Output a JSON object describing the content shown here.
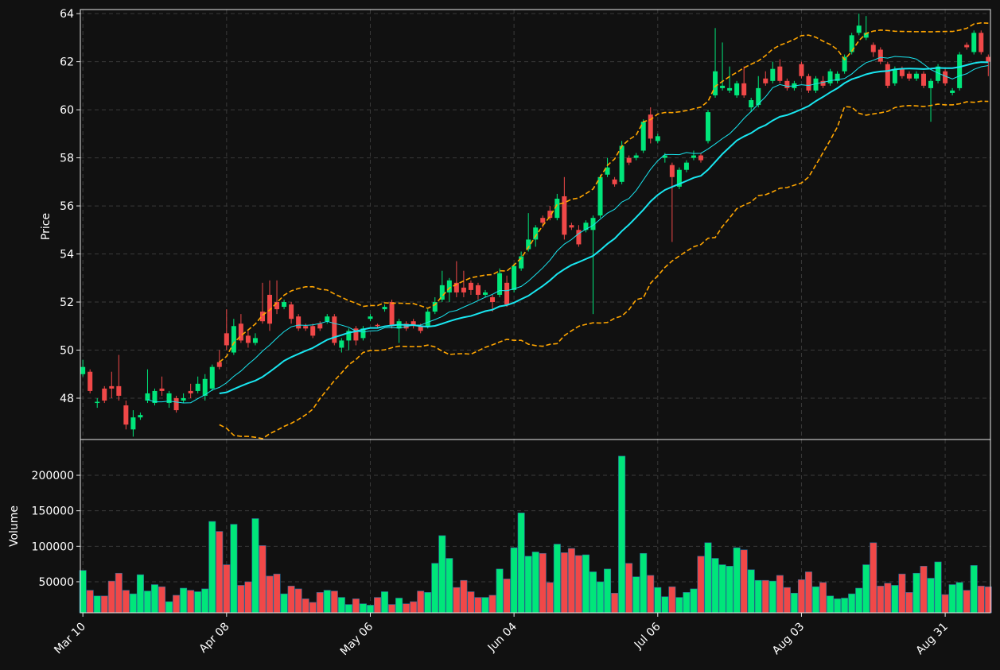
{
  "chart_data": {
    "type": "candlestick",
    "ylabel": "Price",
    "volume_label": "Volume",
    "ylim": [
      46.28,
      64.17
    ],
    "yticks": [
      48,
      50,
      52,
      54,
      56,
      58,
      60,
      62,
      64
    ],
    "volume_ylim": [
      6300,
      250400
    ],
    "volume_yticks": [
      50000,
      100000,
      150000,
      200000
    ],
    "xlim": [
      -0.35,
      126.3
    ],
    "grid": true,
    "up_color": "#00e67a",
    "down_color": "#f04848",
    "ma_color": "#19e6f0",
    "band_color": "#ffa500",
    "categories": [
      "Mar 10",
      null,
      null,
      null,
      null,
      null,
      null,
      null,
      null,
      null,
      null,
      null,
      null,
      null,
      null,
      null,
      null,
      null,
      null,
      null,
      "Apr 08",
      null,
      null,
      null,
      null,
      null,
      null,
      null,
      null,
      null,
      null,
      null,
      null,
      null,
      null,
      null,
      null,
      null,
      null,
      null,
      "May 06",
      null,
      null,
      null,
      null,
      null,
      null,
      null,
      null,
      null,
      null,
      null,
      null,
      null,
      null,
      null,
      null,
      null,
      null,
      null,
      "Jun 04",
      null,
      null,
      null,
      null,
      null,
      null,
      null,
      null,
      null,
      null,
      null,
      null,
      null,
      null,
      null,
      null,
      null,
      null,
      null,
      "Jul 06",
      null,
      null,
      null,
      null,
      null,
      null,
      null,
      null,
      null,
      null,
      null,
      null,
      null,
      null,
      null,
      null,
      null,
      null,
      null,
      "Aug 03",
      null,
      null,
      null,
      null,
      null,
      null,
      null,
      null,
      null,
      null,
      null,
      null,
      null,
      null,
      null,
      null,
      null,
      null,
      null,
      "Aug 31",
      null,
      null,
      null,
      null,
      null,
      null
    ],
    "open": [
      49.0,
      49.1,
      47.8,
      48.4,
      48.5,
      48.5,
      47.7,
      46.7,
      47.2,
      47.9,
      47.8,
      48.4,
      47.8,
      48.0,
      47.9,
      48.3,
      48.3,
      48.1,
      48.4,
      49.5,
      50.7,
      49.9,
      51.1,
      50.6,
      50.3,
      51.6,
      52.3,
      52.0,
      51.8,
      51.9,
      51.4,
      51.0,
      51.0,
      51.1,
      51.2,
      51.4,
      50.1,
      50.4,
      50.9,
      50.5,
      51.3,
      51.05,
      51.7,
      52.0,
      50.9,
      51.1,
      51.2,
      51.0,
      51.0,
      51.6,
      52.1,
      52.4,
      52.8,
      52.6,
      52.8,
      52.7,
      52.3,
      52.2,
      52.3,
      52.8,
      52.5,
      53.4,
      54.2,
      54.6,
      55.5,
      55.8,
      55.5,
      56.4,
      55.2,
      55.0,
      55.0,
      55.0,
      55.6,
      57.3,
      57.1,
      57.0,
      58.0,
      58.0,
      58.3,
      59.8,
      58.7,
      58.0,
      57.7,
      56.8,
      57.5,
      58.0,
      58.1,
      58.7,
      60.6,
      60.9,
      60.8,
      60.6,
      61.1,
      60.1,
      60.2,
      61.3,
      61.2,
      61.8,
      61.2,
      60.9,
      61.9,
      61.4,
      60.8,
      61.2,
      61.1,
      61.2,
      61.6,
      62.4,
      63.2,
      63.0,
      62.7,
      62.5,
      61.9,
      61.1,
      61.7,
      61.5,
      61.3,
      61.5,
      60.9,
      61.2,
      61.6,
      60.7,
      60.9,
      62.7,
      62.4,
      63.2,
      62.2
    ],
    "high": [
      49.6,
      49.2,
      48.0,
      48.5,
      49.1,
      49.8,
      47.9,
      47.5,
      47.4,
      49.2,
      48.4,
      48.9,
      48.3,
      48.1,
      48.2,
      48.6,
      48.9,
      49.0,
      49.4,
      50.0,
      51.7,
      51.3,
      51.5,
      50.8,
      50.7,
      52.8,
      52.9,
      52.9,
      52.1,
      52.0,
      51.5,
      51.1,
      51.1,
      51.2,
      51.5,
      51.5,
      50.5,
      50.9,
      51.0,
      51.0,
      51.5,
      51.1,
      51.9,
      52.1,
      51.3,
      51.2,
      51.3,
      51.1,
      51.7,
      52.2,
      53.3,
      53.0,
      53.7,
      53.3,
      52.9,
      52.8,
      52.5,
      52.3,
      53.4,
      53.1,
      53.6,
      54.1,
      55.7,
      55.2,
      55.6,
      56.0,
      56.5,
      57.2,
      55.3,
      55.2,
      55.4,
      55.6,
      57.3,
      58.0,
      57.2,
      58.7,
      58.1,
      58.2,
      59.6,
      60.1,
      59.0,
      58.2,
      57.8,
      57.6,
      57.9,
      58.3,
      58.2,
      60.0,
      63.4,
      62.8,
      61.8,
      61.2,
      61.8,
      60.5,
      61.4,
      61.6,
      62.0,
      62.1,
      61.3,
      61.2,
      62.0,
      61.5,
      61.4,
      61.4,
      61.7,
      61.6,
      62.3,
      63.2,
      64.0,
      63.9,
      62.8,
      62.6,
      62.0,
      61.8,
      61.8,
      61.6,
      61.6,
      61.6,
      61.3,
      61.9,
      61.7,
      60.9,
      62.4,
      62.8,
      63.3,
      63.3,
      62.3
    ],
    "low": [
      48.9,
      48.2,
      47.6,
      47.8,
      48.0,
      47.9,
      46.7,
      46.4,
      47.1,
      47.8,
      47.7,
      48.1,
      47.6,
      47.4,
      47.8,
      48.0,
      48.2,
      47.9,
      48.3,
      49.2,
      50.0,
      49.8,
      50.3,
      50.1,
      50.2,
      51.1,
      50.8,
      51.5,
      51.7,
      51.1,
      50.8,
      50.8,
      50.5,
      50.8,
      51.1,
      50.2,
      49.9,
      50.0,
      50.2,
      50.4,
      51.2,
      50.9,
      51.6,
      50.9,
      50.3,
      50.8,
      50.9,
      50.7,
      50.9,
      51.5,
      52.0,
      52.0,
      52.2,
      52.2,
      52.3,
      52.1,
      52.2,
      51.6,
      52.2,
      51.8,
      52.4,
      53.3,
      54.1,
      54.3,
      55.1,
      55.4,
      55.4,
      54.6,
      55.0,
      54.3,
      54.9,
      51.5,
      55.5,
      57.2,
      56.8,
      56.9,
      57.7,
      57.9,
      58.2,
      58.6,
      58.6,
      57.8,
      54.5,
      56.7,
      57.4,
      57.9,
      57.8,
      58.6,
      60.5,
      60.8,
      60.7,
      60.5,
      60.5,
      59.9,
      60.1,
      61.0,
      61.1,
      61.1,
      60.8,
      60.8,
      61.3,
      60.7,
      60.7,
      60.9,
      61.0,
      61.1,
      61.5,
      62.3,
      63.1,
      62.9,
      62.2,
      61.9,
      60.9,
      61.0,
      61.3,
      61.2,
      61.2,
      60.9,
      59.5,
      61.1,
      61.0,
      60.6,
      60.8,
      62.5,
      62.3,
      62.3,
      61.4
    ],
    "close": [
      49.3,
      48.3,
      47.85,
      47.9,
      48.4,
      48.1,
      46.9,
      47.2,
      47.3,
      48.2,
      48.3,
      48.3,
      48.2,
      47.5,
      48.0,
      48.2,
      48.6,
      48.8,
      49.3,
      49.3,
      50.2,
      51.0,
      50.4,
      50.3,
      50.5,
      51.2,
      51.1,
      51.7,
      52.0,
      51.3,
      50.9,
      50.9,
      50.6,
      50.9,
      51.4,
      50.3,
      50.4,
      50.8,
      50.4,
      50.9,
      51.4,
      51.0,
      51.8,
      51.0,
      51.2,
      50.9,
      51.0,
      50.8,
      51.6,
      52.0,
      52.7,
      52.9,
      52.4,
      52.4,
      52.5,
      52.3,
      52.4,
      52.0,
      53.2,
      51.9,
      53.5,
      53.9,
      54.6,
      55.1,
      55.3,
      55.5,
      56.3,
      54.8,
      55.1,
      54.4,
      55.3,
      55.5,
      57.2,
      57.6,
      56.9,
      58.5,
      57.8,
      58.1,
      59.5,
      58.8,
      58.9,
      58.1,
      57.2,
      57.5,
      57.8,
      58.1,
      57.9,
      59.9,
      61.6,
      61.0,
      60.9,
      61.1,
      60.6,
      60.4,
      60.9,
      61.1,
      61.7,
      61.2,
      60.9,
      61.1,
      61.4,
      60.8,
      61.3,
      61.0,
      61.6,
      61.5,
      62.2,
      63.1,
      63.5,
      63.2,
      62.4,
      62.0,
      61.0,
      61.7,
      61.4,
      61.3,
      61.5,
      61.0,
      61.2,
      61.8,
      61.1,
      60.8,
      62.3,
      62.6,
      63.2,
      62.4,
      62.0
    ],
    "volume": [
      66000,
      38000,
      30000,
      30000,
      51000,
      62000,
      38000,
      33000,
      60000,
      37000,
      46000,
      43000,
      22000,
      31000,
      41000,
      38000,
      36000,
      40000,
      135000,
      121000,
      74000,
      131000,
      45000,
      50000,
      139000,
      101000,
      58000,
      61000,
      33000,
      44000,
      40000,
      26000,
      21000,
      35000,
      38000,
      37000,
      28000,
      18000,
      26000,
      19000,
      17000,
      28000,
      36000,
      18000,
      27000,
      19000,
      22000,
      37000,
      35000,
      76000,
      115000,
      83000,
      42000,
      52000,
      36000,
      28000,
      28000,
      31000,
      68000,
      54000,
      98000,
      147000,
      86000,
      92000,
      90000,
      49000,
      103000,
      91000,
      97000,
      87000,
      88000,
      64000,
      50000,
      68000,
      34000,
      227000,
      76000,
      57000,
      90000,
      59000,
      42000,
      29000,
      43000,
      28000,
      35000,
      40000,
      86000,
      105000,
      83000,
      74000,
      72000,
      98000,
      95000,
      67000,
      52000,
      52000,
      51000,
      59000,
      42000,
      34000,
      53000,
      64000,
      43000,
      49000,
      30000,
      26000,
      27000,
      33000,
      41000,
      74000,
      105000,
      44000,
      48000,
      45000,
      61000,
      35000,
      62000,
      72000,
      55000,
      78000,
      32000,
      46000,
      49000,
      38000,
      73000,
      44000,
      43000
    ]
  }
}
